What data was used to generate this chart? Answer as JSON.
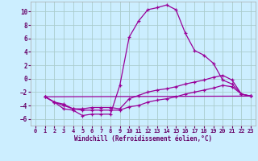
{
  "xlabel": "Windchill (Refroidissement éolien,°C)",
  "background_color": "#cceeff",
  "grid_color": "#aacccc",
  "line_color": "#990099",
  "xlim": [
    -0.5,
    23.5
  ],
  "ylim": [
    -7,
    11.5
  ],
  "yticks": [
    -6,
    -4,
    -2,
    0,
    2,
    4,
    6,
    8,
    10
  ],
  "xticks": [
    0,
    1,
    2,
    3,
    4,
    5,
    6,
    7,
    8,
    9,
    10,
    11,
    12,
    13,
    14,
    15,
    16,
    17,
    18,
    19,
    20,
    21,
    22,
    23
  ],
  "curve1_x": [
    1,
    2,
    3,
    4,
    5,
    6,
    7,
    8,
    9,
    10,
    11,
    12,
    13,
    14,
    15,
    16,
    17,
    18,
    19,
    20,
    21,
    22,
    23
  ],
  "curve1_y": [
    -2.7,
    -3.5,
    -4.5,
    -4.7,
    -5.5,
    -5.3,
    -5.3,
    -5.3,
    -1.0,
    6.2,
    8.6,
    10.3,
    10.6,
    11.0,
    10.3,
    6.8,
    4.2,
    3.5,
    2.3,
    -0.2,
    -0.8,
    -2.3,
    -2.6
  ],
  "curve2_x": [
    1,
    2,
    3,
    4,
    5,
    6,
    7,
    8,
    9,
    10,
    11,
    12,
    13,
    14,
    15,
    16,
    17,
    18,
    19,
    20,
    21,
    22,
    23
  ],
  "curve2_y": [
    -2.7,
    -3.5,
    -3.8,
    -4.5,
    -4.5,
    -4.3,
    -4.3,
    -4.3,
    -4.5,
    -3.0,
    -2.5,
    -2.0,
    -1.7,
    -1.5,
    -1.2,
    -0.8,
    -0.5,
    -0.2,
    0.2,
    0.5,
    -0.2,
    -2.3,
    -2.6
  ],
  "curve3_x": [
    1,
    2,
    3,
    4,
    5,
    6,
    7,
    8,
    9,
    10,
    11,
    12,
    13,
    14,
    15,
    16,
    17,
    18,
    19,
    20,
    21,
    22,
    23
  ],
  "curve3_y": [
    -2.7,
    -3.5,
    -4.0,
    -4.5,
    -4.7,
    -4.7,
    -4.7,
    -4.7,
    -4.7,
    -4.2,
    -4.0,
    -3.5,
    -3.2,
    -3.0,
    -2.7,
    -2.3,
    -2.0,
    -1.7,
    -1.4,
    -1.0,
    -1.2,
    -2.3,
    -2.6
  ],
  "curve4_x": [
    1,
    23
  ],
  "curve4_y": [
    -2.7,
    -2.6
  ]
}
